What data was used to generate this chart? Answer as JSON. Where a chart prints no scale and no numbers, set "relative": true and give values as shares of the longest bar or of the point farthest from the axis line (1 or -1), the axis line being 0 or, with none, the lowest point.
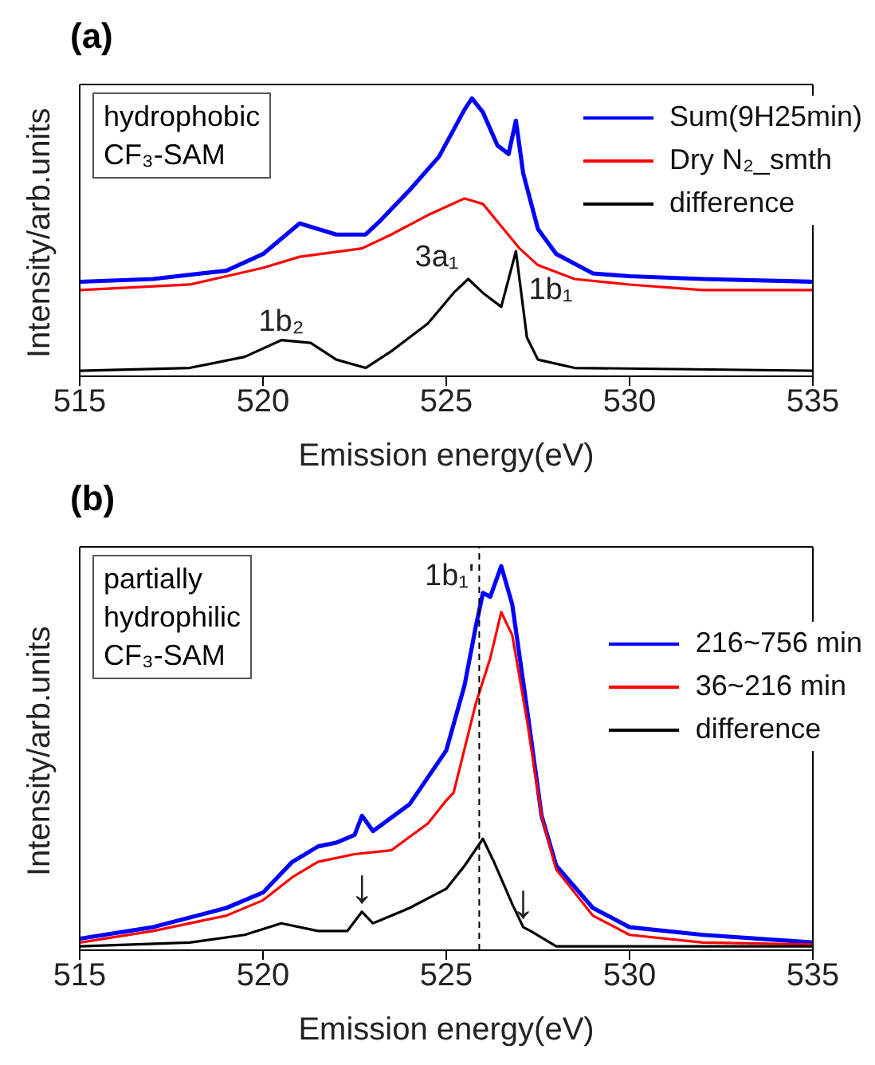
{
  "chart_data": [
    {
      "type": "line",
      "title": "(a)",
      "xlabel": "Emission energy(eV)",
      "ylabel": "Intensity/arb.units",
      "relative": true,
      "xlim": [
        515,
        535
      ],
      "xticks": [
        515,
        520,
        525,
        530,
        535
      ],
      "legend": "top right",
      "grid": false,
      "marker": "none",
      "line_style": "solid",
      "annotations": [
        "hydrophobic\nCF₃-SAM",
        {
          "text": "1b₂",
          "x": 520.5,
          "y": 0.13
        },
        {
          "text": "3a₁",
          "x": 525.6,
          "y": 0.35
        },
        {
          "text": "1b₁",
          "x": 526.9,
          "y": 0.45
        }
      ],
      "series": [
        {
          "name": "Sum(9H25min)",
          "color": "#0000ff",
          "x": [
            515,
            517,
            519,
            520,
            521,
            522,
            522.8,
            523.2,
            524,
            524.8,
            525.5,
            525.7,
            526,
            526.4,
            526.7,
            526.9,
            527.1,
            527.5,
            528,
            529,
            530,
            532,
            535
          ],
          "values": [
            0.34,
            0.35,
            0.38,
            0.44,
            0.55,
            0.51,
            0.51,
            0.56,
            0.67,
            0.79,
            0.96,
            1.0,
            0.95,
            0.83,
            0.8,
            0.92,
            0.73,
            0.53,
            0.44,
            0.37,
            0.36,
            0.35,
            0.34
          ]
        },
        {
          "name": "Dry N₂_smth",
          "color": "#ff0000",
          "x": [
            515,
            518,
            520,
            521,
            522.7,
            523.5,
            524.5,
            525.5,
            526,
            526.5,
            527,
            527.5,
            528.5,
            530,
            532,
            535
          ],
          "values": [
            0.31,
            0.33,
            0.39,
            0.43,
            0.46,
            0.51,
            0.58,
            0.64,
            0.62,
            0.54,
            0.46,
            0.4,
            0.35,
            0.33,
            0.31,
            0.31
          ]
        },
        {
          "name": "difference",
          "color": "#000000",
          "x": [
            515,
            518,
            519.5,
            520.5,
            521.3,
            522,
            522.8,
            523.5,
            524.5,
            525.2,
            525.6,
            526,
            526.5,
            526.9,
            527.2,
            527.5,
            528.5,
            535
          ],
          "values": [
            0.02,
            0.03,
            0.07,
            0.13,
            0.12,
            0.06,
            0.03,
            0.09,
            0.19,
            0.3,
            0.35,
            0.3,
            0.25,
            0.45,
            0.14,
            0.06,
            0.03,
            0.02
          ]
        }
      ]
    },
    {
      "type": "line",
      "title": "(b)",
      "xlabel": "Emission energy(eV)",
      "ylabel": "Intensity/arb.units",
      "relative": true,
      "xlim": [
        515,
        535
      ],
      "xticks": [
        515,
        520,
        525,
        530,
        535
      ],
      "legend": "top right",
      "grid": false,
      "marker": "none",
      "line_style": "solid",
      "annotations": [
        "partially\nhydrophilic\nCF₃-SAM",
        {
          "text": "↓",
          "x": 522.7,
          "y": 0.1
        },
        {
          "text": "↓",
          "x": 527.1,
          "y": 0.06
        }
      ],
      "ref_lines": [
        {
          "axis": "x",
          "value": 525.9,
          "label": "1b₁'",
          "color": "#000000",
          "line_style": "dashed"
        }
      ],
      "series": [
        {
          "name": "216~756 min",
          "color": "#0000ff",
          "x": [
            515,
            517,
            519,
            520,
            520.8,
            521.5,
            522,
            522.5,
            522.7,
            523,
            524,
            525,
            525.5,
            525.8,
            526,
            526.2,
            526.5,
            526.8,
            527.2,
            527.6,
            528,
            529,
            530,
            532,
            535
          ],
          "values": [
            0.03,
            0.06,
            0.11,
            0.15,
            0.23,
            0.27,
            0.28,
            0.3,
            0.35,
            0.31,
            0.38,
            0.52,
            0.69,
            0.84,
            0.93,
            0.92,
            1.0,
            0.9,
            0.63,
            0.35,
            0.22,
            0.11,
            0.06,
            0.04,
            0.02
          ]
        },
        {
          "name": "36~216 min",
          "color": "#ff0000",
          "x": [
            515,
            517,
            519,
            520,
            520.8,
            521.5,
            522.5,
            523.5,
            524.5,
            525,
            525.2,
            525.8,
            526.2,
            526.5,
            526.8,
            527.2,
            527.6,
            528,
            529,
            530,
            532,
            535
          ],
          "values": [
            0.02,
            0.05,
            0.09,
            0.13,
            0.19,
            0.23,
            0.25,
            0.26,
            0.33,
            0.39,
            0.41,
            0.64,
            0.76,
            0.88,
            0.82,
            0.6,
            0.35,
            0.21,
            0.09,
            0.04,
            0.02,
            0.015
          ]
        },
        {
          "name": "difference",
          "color": "#000000",
          "x": [
            515,
            518,
            519.5,
            520.5,
            521.5,
            522.3,
            522.7,
            523,
            524,
            525,
            525.5,
            526,
            526.3,
            526.8,
            527.1,
            527.3,
            528,
            535
          ],
          "values": [
            0.01,
            0.02,
            0.04,
            0.07,
            0.05,
            0.05,
            0.1,
            0.07,
            0.11,
            0.16,
            0.22,
            0.29,
            0.23,
            0.12,
            0.06,
            0.05,
            0.01,
            0.01
          ]
        }
      ]
    }
  ]
}
